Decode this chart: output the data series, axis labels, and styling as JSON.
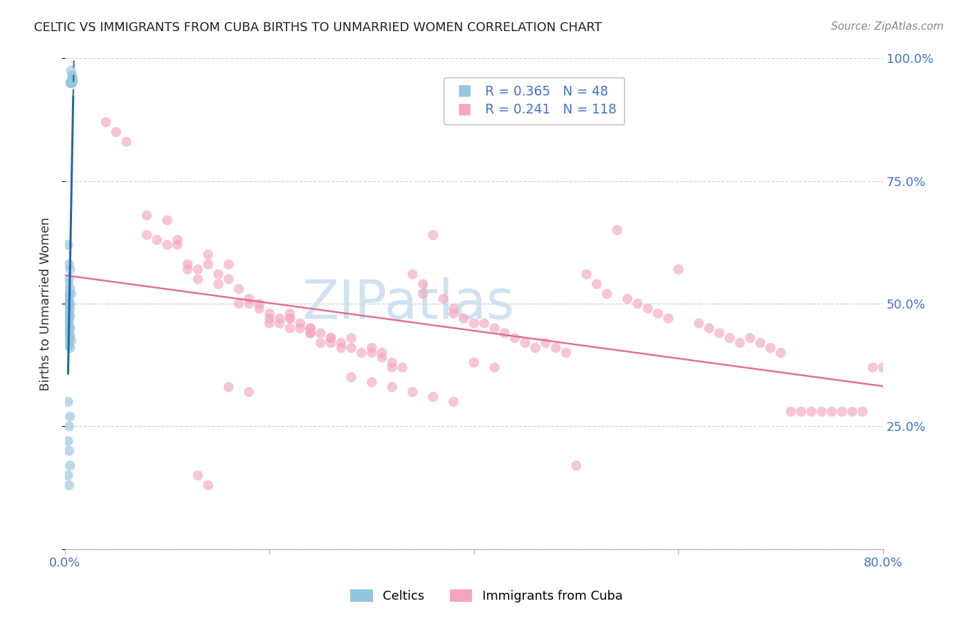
{
  "title": "CELTIC VS IMMIGRANTS FROM CUBA BIRTHS TO UNMARRIED WOMEN CORRELATION CHART",
  "source": "Source: ZipAtlas.com",
  "ylabel": "Births to Unmarried Women",
  "x_min": 0.0,
  "x_max": 0.8,
  "y_min": 0.0,
  "y_max": 1.0,
  "celtics_R": 0.365,
  "celtics_N": 48,
  "cuba_R": 0.241,
  "cuba_N": 118,
  "legend_label_celtics": "Celtics",
  "legend_label_cuba": "Immigrants from Cuba",
  "celtics_color": "#92c5de",
  "cuba_color": "#f4a6c0",
  "trend_celtics_color": "#2166ac",
  "trend_cuba_color": "#e07090",
  "legend_R_color": "#4472c4",
  "legend_N_color": "#4472c4",
  "watermark_color": "#c8ddf0",
  "axis_label_color": "#4472c4",
  "title_color": "#222222",
  "source_color": "#888888",
  "grid_color": "#d0d0d0",
  "celtics_x": [
    0.006,
    0.007,
    0.007,
    0.008,
    0.006,
    0.005,
    0.006,
    0.007,
    0.003,
    0.004,
    0.005,
    0.004,
    0.003,
    0.005,
    0.004,
    0.006,
    0.003,
    0.004,
    0.003,
    0.005,
    0.004,
    0.003,
    0.004,
    0.005,
    0.003,
    0.004,
    0.005,
    0.003,
    0.004,
    0.003,
    0.004,
    0.005,
    0.004,
    0.003,
    0.005,
    0.004,
    0.006,
    0.003,
    0.004,
    0.005,
    0.003,
    0.005,
    0.004,
    0.003,
    0.004,
    0.005,
    0.003,
    0.004
  ],
  "celtics_y": [
    0.975,
    0.965,
    0.96,
    0.955,
    0.95,
    0.95,
    0.95,
    0.95,
    0.62,
    0.58,
    0.57,
    0.55,
    0.54,
    0.53,
    0.52,
    0.52,
    0.515,
    0.51,
    0.505,
    0.5,
    0.5,
    0.5,
    0.495,
    0.49,
    0.485,
    0.48,
    0.475,
    0.47,
    0.465,
    0.46,
    0.455,
    0.45,
    0.445,
    0.44,
    0.435,
    0.43,
    0.425,
    0.42,
    0.415,
    0.41,
    0.3,
    0.27,
    0.25,
    0.22,
    0.2,
    0.17,
    0.15,
    0.13
  ],
  "cuba_x": [
    0.04,
    0.05,
    0.06,
    0.08,
    0.08,
    0.09,
    0.1,
    0.1,
    0.11,
    0.11,
    0.12,
    0.12,
    0.13,
    0.13,
    0.14,
    0.14,
    0.15,
    0.15,
    0.16,
    0.16,
    0.17,
    0.17,
    0.18,
    0.18,
    0.19,
    0.19,
    0.2,
    0.2,
    0.21,
    0.21,
    0.22,
    0.22,
    0.23,
    0.23,
    0.24,
    0.24,
    0.25,
    0.25,
    0.26,
    0.26,
    0.27,
    0.27,
    0.28,
    0.28,
    0.29,
    0.3,
    0.3,
    0.31,
    0.31,
    0.32,
    0.32,
    0.33,
    0.34,
    0.35,
    0.35,
    0.36,
    0.37,
    0.38,
    0.38,
    0.39,
    0.4,
    0.41,
    0.42,
    0.43,
    0.44,
    0.45,
    0.46,
    0.47,
    0.48,
    0.49,
    0.5,
    0.51,
    0.52,
    0.53,
    0.54,
    0.55,
    0.56,
    0.57,
    0.58,
    0.59,
    0.6,
    0.62,
    0.63,
    0.64,
    0.65,
    0.66,
    0.67,
    0.68,
    0.69,
    0.7,
    0.71,
    0.72,
    0.73,
    0.74,
    0.75,
    0.76,
    0.77,
    0.78,
    0.79,
    0.8,
    0.13,
    0.14,
    0.22,
    0.24,
    0.16,
    0.18,
    0.2,
    0.22,
    0.24,
    0.26,
    0.28,
    0.3,
    0.32,
    0.34,
    0.36,
    0.38,
    0.4,
    0.42
  ],
  "cuba_y": [
    0.87,
    0.85,
    0.83,
    0.68,
    0.64,
    0.63,
    0.67,
    0.62,
    0.63,
    0.62,
    0.57,
    0.58,
    0.57,
    0.55,
    0.6,
    0.58,
    0.56,
    0.54,
    0.58,
    0.55,
    0.5,
    0.53,
    0.51,
    0.5,
    0.49,
    0.5,
    0.48,
    0.47,
    0.47,
    0.46,
    0.48,
    0.47,
    0.46,
    0.45,
    0.45,
    0.44,
    0.44,
    0.42,
    0.43,
    0.42,
    0.42,
    0.41,
    0.43,
    0.41,
    0.4,
    0.41,
    0.4,
    0.4,
    0.39,
    0.38,
    0.37,
    0.37,
    0.56,
    0.54,
    0.52,
    0.64,
    0.51,
    0.49,
    0.48,
    0.47,
    0.46,
    0.46,
    0.45,
    0.44,
    0.43,
    0.42,
    0.41,
    0.42,
    0.41,
    0.4,
    0.17,
    0.56,
    0.54,
    0.52,
    0.65,
    0.51,
    0.5,
    0.49,
    0.48,
    0.47,
    0.57,
    0.46,
    0.45,
    0.44,
    0.43,
    0.42,
    0.43,
    0.42,
    0.41,
    0.4,
    0.28,
    0.28,
    0.28,
    0.28,
    0.28,
    0.28,
    0.28,
    0.28,
    0.37,
    0.37,
    0.15,
    0.13,
    0.47,
    0.45,
    0.33,
    0.32,
    0.46,
    0.45,
    0.44,
    0.43,
    0.35,
    0.34,
    0.33,
    0.32,
    0.31,
    0.3,
    0.38,
    0.37
  ]
}
